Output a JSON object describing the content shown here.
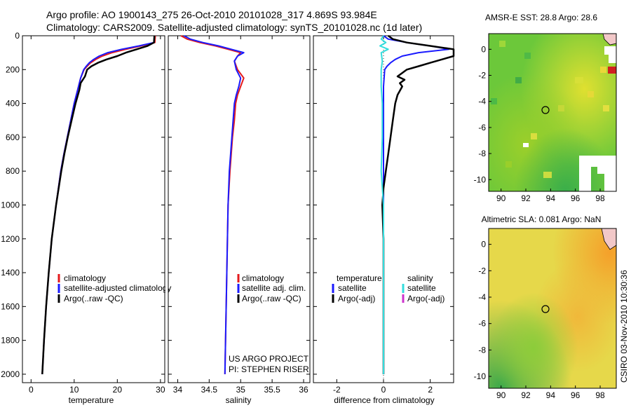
{
  "header": {
    "line1": "Argo profile: AO 1900143_275 26-Oct-2010 20101028_317 4.869S 93.984E",
    "line2": "Climatology: CARS2009. Satellite-adjusted climatology: synTS_20101028.nc (1d later)"
  },
  "footer_stamp": "CSIRO 03-Nov-2010 10:30:36",
  "colors": {
    "climatology": "#e41a1c",
    "satellite": "#1a1aff",
    "argo": "#000000",
    "salinity_satellite": "#33dddd",
    "salinity_argo": "#cc33cc"
  },
  "chart_data": [
    {
      "type": "line",
      "id": "temperature",
      "xlabel": "temperature",
      "ylabel": "",
      "xlim": [
        -2,
        31
      ],
      "ylim": [
        0,
        2050
      ],
      "y_inverted": true,
      "xticks": [
        0,
        10,
        20,
        30
      ],
      "yticks": [
        0,
        200,
        400,
        600,
        800,
        1000,
        1200,
        1400,
        1600,
        1800,
        2000
      ],
      "legend": [
        "climatology",
        "satellite-adjusted climatology",
        "Argo(..raw -QC)"
      ],
      "series": [
        {
          "name": "climatology",
          "color": "#e41a1c",
          "depth": [
            0,
            40,
            60,
            80,
            100,
            120,
            140,
            160,
            180,
            200,
            250,
            300,
            400,
            500,
            600,
            700,
            800,
            1000,
            1200,
            1400,
            1600,
            1800,
            2000
          ],
          "values": [
            28.8,
            28.7,
            25.5,
            22.0,
            18.8,
            16.5,
            15.0,
            13.8,
            13.0,
            12.3,
            11.5,
            11.0,
            10.0,
            9.2,
            8.4,
            7.6,
            6.9,
            5.8,
            4.8,
            4.1,
            3.5,
            3.0,
            2.6
          ]
        },
        {
          "name": "satellite-adjusted climatology",
          "color": "#1a1aff",
          "depth": [
            0,
            40,
            60,
            80,
            100,
            120,
            140,
            160,
            180,
            200,
            250,
            300,
            400,
            500,
            600,
            700,
            800,
            1000,
            1200,
            1400,
            1600,
            1800,
            2000
          ],
          "values": [
            28.6,
            28.5,
            25.0,
            21.0,
            17.8,
            15.8,
            14.5,
            13.5,
            12.8,
            12.2,
            11.5,
            11.0,
            10.0,
            9.2,
            8.4,
            7.6,
            6.9,
            5.8,
            4.8,
            4.1,
            3.5,
            3.0,
            2.6
          ]
        },
        {
          "name": "Argo(..raw -QC)",
          "color": "#000000",
          "depth": [
            0,
            40,
            60,
            80,
            100,
            120,
            140,
            160,
            180,
            200,
            240,
            280,
            320,
            400,
            500,
            600,
            700,
            800,
            1000,
            1200,
            1400,
            1600,
            1800,
            2000
          ],
          "values": [
            28.6,
            28.5,
            27.0,
            24.5,
            22.0,
            20.0,
            17.5,
            15.5,
            14.0,
            13.0,
            12.5,
            11.5,
            11.2,
            10.3,
            9.4,
            8.5,
            7.7,
            7.0,
            5.8,
            4.8,
            4.1,
            3.5,
            3.0,
            2.6
          ]
        }
      ]
    },
    {
      "type": "line",
      "id": "salinity",
      "xlabel": "salinity",
      "ylabel": "",
      "xlim": [
        33.85,
        36.1
      ],
      "ylim": [
        0,
        2050
      ],
      "y_inverted": true,
      "xticks": [
        34,
        34.5,
        35,
        35.5,
        36
      ],
      "yticks": [
        0,
        200,
        400,
        600,
        800,
        1000,
        1200,
        1400,
        1600,
        1800,
        2000
      ],
      "legend": [
        "climatology",
        "satellite adj. clim.",
        "Argo(..raw -QC)"
      ],
      "annotation": [
        "US ARGO PROJECT",
        "PI: STEPHEN RISER"
      ],
      "series": [
        {
          "name": "climatology",
          "color": "#e41a1c",
          "depth": [
            0,
            20,
            40,
            60,
            80,
            100,
            120,
            150,
            200,
            250,
            300,
            350,
            400,
            500,
            600,
            700,
            800,
            1000,
            1200,
            1400,
            1600,
            1800,
            2000
          ],
          "values": [
            34.05,
            34.15,
            34.35,
            34.6,
            34.8,
            35.0,
            34.95,
            34.9,
            34.95,
            35.05,
            35.0,
            34.95,
            34.92,
            34.9,
            34.87,
            34.85,
            34.83,
            34.8,
            34.79,
            34.78,
            34.77,
            34.76,
            34.75
          ]
        },
        {
          "name": "satellite adj. clim.",
          "color": "#1a1aff",
          "depth": [
            0,
            20,
            40,
            60,
            80,
            100,
            120,
            150,
            200,
            250,
            300,
            350,
            400,
            500,
            600,
            700,
            800,
            1000,
            1200,
            1400,
            1600,
            1800,
            2000
          ],
          "values": [
            34.1,
            34.2,
            34.4,
            34.65,
            34.85,
            35.05,
            34.95,
            34.9,
            34.93,
            35.0,
            34.97,
            34.93,
            34.9,
            34.88,
            34.86,
            34.84,
            34.82,
            34.8,
            34.79,
            34.78,
            34.77,
            34.76,
            34.75
          ]
        }
      ]
    },
    {
      "type": "line",
      "id": "difference",
      "xlabel": "difference from climatology",
      "ylabel": "",
      "xlim": [
        -3,
        3
      ],
      "ylim": [
        0,
        2050
      ],
      "y_inverted": true,
      "xticks": [
        -2,
        0,
        2
      ],
      "yticks": [
        0,
        200,
        400,
        600,
        800,
        1000,
        1200,
        1400,
        1600,
        1800,
        2000
      ],
      "legend_temperature": {
        "title": "temperature",
        "items": [
          "satellite",
          "Argo(-adj)"
        ]
      },
      "legend_salinity": {
        "title": "salinity",
        "items": [
          "satellite",
          "Argo(-adj)"
        ]
      },
      "series": [
        {
          "name": "temperature satellite",
          "color": "#1a1aff",
          "depth": [
            0,
            20,
            40,
            60,
            80,
            100,
            120,
            140,
            160,
            180,
            200,
            300,
            400,
            600,
            800,
            1000,
            1500,
            2000
          ],
          "values": [
            0.0,
            0.2,
            1.0,
            2.0,
            2.8,
            1.5,
            0.8,
            0.5,
            0.3,
            0.15,
            0.05,
            0.0,
            0.0,
            0.0,
            0.0,
            0.0,
            0.0,
            0.0
          ]
        },
        {
          "name": "temperature Argo(-adj)",
          "color": "#000000",
          "depth": [
            0,
            20,
            40,
            60,
            80,
            100,
            120,
            140,
            160,
            180,
            200,
            220,
            240,
            260,
            280,
            300,
            350,
            400,
            500,
            600,
            700,
            800,
            900,
            1000,
            1200,
            1500,
            2000
          ],
          "values": [
            0.2,
            0.4,
            1.0,
            2.0,
            3.0,
            3.0,
            3.0,
            2.5,
            2.0,
            1.5,
            1.0,
            0.8,
            0.6,
            0.9,
            0.7,
            0.8,
            0.6,
            0.5,
            0.4,
            0.3,
            0.2,
            0.1,
            0.0,
            -0.05,
            0.0,
            0.0,
            0.0
          ]
        },
        {
          "name": "salinity satellite",
          "color": "#33dddd",
          "depth": [
            0,
            20,
            40,
            60,
            80,
            100,
            150,
            200,
            300,
            400,
            600,
            800,
            1000,
            1500,
            2000
          ],
          "values": [
            0.0,
            -0.1,
            0.1,
            -0.15,
            0.2,
            -0.1,
            -0.05,
            -0.1,
            -0.1,
            -0.05,
            -0.05,
            -0.1,
            0.0,
            0.0,
            0.0
          ]
        }
      ]
    },
    {
      "type": "heatmap",
      "id": "sst_map",
      "title": "AMSR-E SST: 28.8 Argo: 28.6",
      "xlim": [
        89,
        99.3
      ],
      "ylim": [
        -10.9,
        1.2
      ],
      "xticks": [
        90,
        92,
        94,
        96,
        98
      ],
      "yticks": [
        0,
        -2,
        -4,
        -6,
        -8,
        -10
      ],
      "argo_position": {
        "lon": 93.984,
        "lat": -4.869
      }
    },
    {
      "type": "heatmap",
      "id": "sla_map",
      "title": "Altimetric SLA: 0.081 Argo: NaN",
      "xlim": [
        89,
        99.3
      ],
      "ylim": [
        -10.9,
        1.2
      ],
      "xticks": [
        90,
        92,
        94,
        96,
        98
      ],
      "yticks": [
        0,
        -2,
        -4,
        -6,
        -8,
        -10
      ],
      "argo_position": {
        "lon": 93.984,
        "lat": -4.869
      }
    }
  ]
}
